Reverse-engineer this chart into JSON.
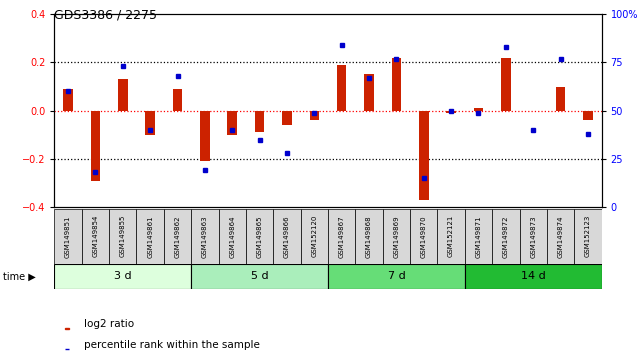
{
  "title": "GDS3386 / 2275",
  "samples": [
    "GSM149851",
    "GSM149854",
    "GSM149855",
    "GSM149861",
    "GSM149862",
    "GSM149863",
    "GSM149864",
    "GSM149865",
    "GSM149866",
    "GSM152120",
    "GSM149867",
    "GSM149868",
    "GSM149869",
    "GSM149870",
    "GSM152121",
    "GSM149871",
    "GSM149872",
    "GSM149873",
    "GSM149874",
    "GSM152123"
  ],
  "log2_ratio": [
    0.09,
    -0.29,
    0.13,
    -0.1,
    0.09,
    -0.21,
    -0.1,
    -0.09,
    -0.06,
    -0.04,
    0.19,
    0.15,
    0.22,
    -0.37,
    -0.01,
    0.01,
    0.22,
    0.0,
    0.1,
    -0.04
  ],
  "pct_rank": [
    60,
    18,
    73,
    40,
    68,
    19,
    40,
    35,
    28,
    49,
    84,
    67,
    77,
    15,
    50,
    49,
    83,
    40,
    77,
    38
  ],
  "groups": [
    {
      "label": "3 d",
      "start": 0,
      "end": 5,
      "color": "#ddffdd"
    },
    {
      "label": "5 d",
      "start": 5,
      "end": 10,
      "color": "#aaeebb"
    },
    {
      "label": "7 d",
      "start": 10,
      "end": 15,
      "color": "#66dd77"
    },
    {
      "label": "14 d",
      "start": 15,
      "end": 20,
      "color": "#22bb33"
    }
  ],
  "bar_color": "#cc2200",
  "dot_color": "#0000cc",
  "ylim_left": [
    -0.4,
    0.4
  ],
  "ylim_right": [
    0,
    100
  ],
  "left_yticks": [
    -0.4,
    -0.2,
    0.0,
    0.2,
    0.4
  ],
  "right_yticks": [
    0,
    25,
    50,
    75,
    100
  ],
  "right_yticklabels": [
    "0",
    "25",
    "50",
    "75",
    "100%"
  ],
  "hlines_black": [
    0.2,
    -0.2
  ],
  "hline_red": 0.0,
  "legend_items": [
    "log2 ratio",
    "percentile rank within the sample"
  ]
}
